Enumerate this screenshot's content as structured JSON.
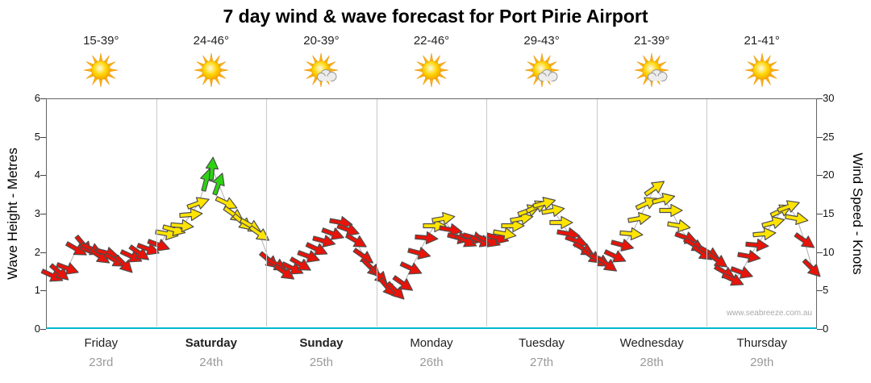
{
  "watermark": "www.seabreeze.com.au",
  "chart_data": {
    "type": "scatter",
    "title": "7 day wind & wave forecast for Port Pirie Airport",
    "left_axis": {
      "label": "Wave Height - Metres",
      "min": 0,
      "max": 6,
      "ticks": [
        0,
        1,
        2,
        3,
        4,
        5,
        6
      ]
    },
    "right_axis": {
      "label": "Wind Speed - Knots",
      "min": 0,
      "max": 30,
      "ticks": [
        0,
        5,
        10,
        15,
        20,
        25,
        30
      ]
    },
    "days": [
      {
        "name": "Friday",
        "date": "23rd",
        "temp": "15-39°",
        "icon": "sun",
        "bold": false
      },
      {
        "name": "Saturday",
        "date": "24th",
        "temp": "24-46°",
        "icon": "sun",
        "bold": true
      },
      {
        "name": "Sunday",
        "date": "25th",
        "temp": "20-39°",
        "icon": "sun-cloud",
        "bold": true
      },
      {
        "name": "Monday",
        "date": "26th",
        "temp": "22-46°",
        "icon": "sun",
        "bold": false
      },
      {
        "name": "Tuesday",
        "date": "27th",
        "temp": "29-43°",
        "icon": "sun-cloud",
        "bold": false
      },
      {
        "name": "Wednesday",
        "date": "28th",
        "temp": "21-39°",
        "icon": "sun-cloud",
        "bold": false
      },
      {
        "name": "Thursday",
        "date": "29th",
        "temp": "21-41°",
        "icon": "sun",
        "bold": false
      }
    ],
    "arrow_colors": {
      "r": "#e81309",
      "y": "#ffe400",
      "g": "#2bd40f"
    },
    "points_format": [
      "day_fraction",
      "wind_speed_knots",
      "direction_deg",
      "color"
    ],
    "points": [
      [
        0.05,
        7,
        25,
        "r"
      ],
      [
        0.12,
        7.5,
        40,
        "r"
      ],
      [
        0.19,
        8,
        20,
        "r"
      ],
      [
        0.27,
        10.5,
        30,
        "r"
      ],
      [
        0.34,
        11,
        50,
        "r"
      ],
      [
        0.41,
        10.5,
        25,
        "r"
      ],
      [
        0.48,
        9.5,
        35,
        "r"
      ],
      [
        0.55,
        10,
        15,
        "r"
      ],
      [
        0.62,
        9,
        30,
        "r"
      ],
      [
        0.7,
        8.5,
        45,
        "r"
      ],
      [
        0.77,
        9.5,
        25,
        "r"
      ],
      [
        0.84,
        10,
        35,
        "r"
      ],
      [
        0.92,
        10.5,
        20,
        "r"
      ],
      [
        1.02,
        11,
        20,
        "r"
      ],
      [
        1.09,
        12.5,
        10,
        "y"
      ],
      [
        1.16,
        13,
        15,
        "y"
      ],
      [
        1.23,
        13.5,
        5,
        "y"
      ],
      [
        1.31,
        15,
        -5,
        "y"
      ],
      [
        1.38,
        16.5,
        -20,
        "y"
      ],
      [
        1.45,
        19.5,
        -75,
        "g"
      ],
      [
        1.5,
        21,
        -85,
        "g"
      ],
      [
        1.56,
        19,
        -70,
        "g"
      ],
      [
        1.63,
        16.5,
        25,
        "y"
      ],
      [
        1.7,
        15,
        35,
        "y"
      ],
      [
        1.78,
        14,
        40,
        "y"
      ],
      [
        1.85,
        13.5,
        30,
        "y"
      ],
      [
        1.93,
        12.5,
        35,
        "y"
      ],
      [
        2.02,
        9,
        40,
        "r"
      ],
      [
        2.09,
        8.5,
        30,
        "r"
      ],
      [
        2.16,
        7.5,
        35,
        "r"
      ],
      [
        2.23,
        8,
        25,
        "r"
      ],
      [
        2.31,
        8.5,
        30,
        "r"
      ],
      [
        2.38,
        9.5,
        20,
        "r"
      ],
      [
        2.45,
        10.5,
        25,
        "r"
      ],
      [
        2.52,
        11.5,
        15,
        "r"
      ],
      [
        2.6,
        12.5,
        20,
        "r"
      ],
      [
        2.67,
        14,
        10,
        "r"
      ],
      [
        2.74,
        13,
        20,
        "r"
      ],
      [
        2.81,
        11.5,
        30,
        "r"
      ],
      [
        2.88,
        9.5,
        35,
        "r"
      ],
      [
        2.95,
        8,
        45,
        "r"
      ],
      [
        3.02,
        7,
        45,
        "r"
      ],
      [
        3.1,
        5.5,
        50,
        "r"
      ],
      [
        3.17,
        5,
        45,
        "r"
      ],
      [
        3.24,
        6,
        35,
        "r"
      ],
      [
        3.31,
        8,
        25,
        "r"
      ],
      [
        3.38,
        10,
        15,
        "r"
      ],
      [
        3.45,
        12,
        5,
        "r"
      ],
      [
        3.52,
        13.5,
        0,
        "y"
      ],
      [
        3.6,
        14.5,
        -10,
        "y"
      ],
      [
        3.67,
        13,
        10,
        "r"
      ],
      [
        3.74,
        12,
        15,
        "r"
      ],
      [
        3.81,
        11.5,
        25,
        "r"
      ],
      [
        3.88,
        12,
        15,
        "r"
      ],
      [
        3.95,
        11.5,
        20,
        "r"
      ],
      [
        4.02,
        11.5,
        20,
        "r"
      ],
      [
        4.09,
        12,
        15,
        "r"
      ],
      [
        4.16,
        12.5,
        10,
        "y"
      ],
      [
        4.23,
        13.5,
        0,
        "y"
      ],
      [
        4.31,
        14.5,
        -10,
        "y"
      ],
      [
        4.38,
        15.5,
        -20,
        "y"
      ],
      [
        4.45,
        16,
        -25,
        "y"
      ],
      [
        4.52,
        16.5,
        -15,
        "y"
      ],
      [
        4.6,
        15.5,
        -10,
        "y"
      ],
      [
        4.67,
        14,
        0,
        "y"
      ],
      [
        4.74,
        12.5,
        10,
        "r"
      ],
      [
        4.81,
        11.5,
        20,
        "r"
      ],
      [
        4.88,
        10.5,
        30,
        "r"
      ],
      [
        4.95,
        9.5,
        35,
        "r"
      ],
      [
        5.02,
        9,
        30,
        "r"
      ],
      [
        5.09,
        8.5,
        35,
        "r"
      ],
      [
        5.16,
        9.5,
        25,
        "r"
      ],
      [
        5.23,
        11,
        15,
        "r"
      ],
      [
        5.31,
        12.5,
        5,
        "y"
      ],
      [
        5.38,
        14.5,
        -10,
        "y"
      ],
      [
        5.45,
        16.5,
        -25,
        "y"
      ],
      [
        5.52,
        18.5,
        -35,
        "y"
      ],
      [
        5.6,
        17,
        -15,
        "y"
      ],
      [
        5.67,
        15.5,
        0,
        "y"
      ],
      [
        5.74,
        13.5,
        10,
        "y"
      ],
      [
        5.81,
        12,
        20,
        "r"
      ],
      [
        5.88,
        11,
        30,
        "r"
      ],
      [
        5.95,
        10,
        35,
        "r"
      ],
      [
        6.02,
        10,
        30,
        "r"
      ],
      [
        6.09,
        9,
        35,
        "r"
      ],
      [
        6.16,
        7.5,
        30,
        "r"
      ],
      [
        6.23,
        6.5,
        25,
        "r"
      ],
      [
        6.31,
        7.5,
        20,
        "r"
      ],
      [
        6.38,
        9.5,
        10,
        "r"
      ],
      [
        6.45,
        11,
        5,
        "r"
      ],
      [
        6.52,
        12.5,
        -5,
        "y"
      ],
      [
        6.6,
        14,
        -15,
        "y"
      ],
      [
        6.67,
        15.5,
        -25,
        "y"
      ],
      [
        6.74,
        16,
        -20,
        "y"
      ],
      [
        6.81,
        14.5,
        10,
        "y"
      ],
      [
        6.88,
        11.5,
        35,
        "r"
      ],
      [
        6.95,
        8,
        45,
        "r"
      ]
    ]
  }
}
